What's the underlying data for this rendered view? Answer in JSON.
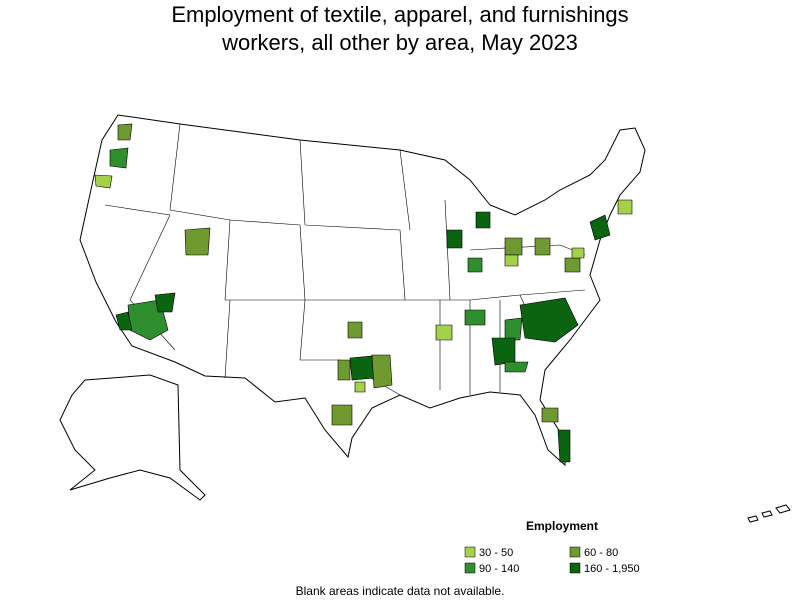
{
  "title_lines": [
    "Employment of textile, apparel, and furnishings",
    "workers, all other by area, May 2023"
  ],
  "legend": {
    "title": "Employment",
    "items": [
      {
        "label": "30 - 50",
        "color": "#a3d14a"
      },
      {
        "label": "60 - 80",
        "color": "#6f9a2f"
      },
      {
        "label": "90 - 140",
        "color": "#2f8f2f"
      },
      {
        "label": "160 - 1,950",
        "color": "#0b6410"
      }
    ]
  },
  "footnote": "Blank areas indicate data not available."
}
